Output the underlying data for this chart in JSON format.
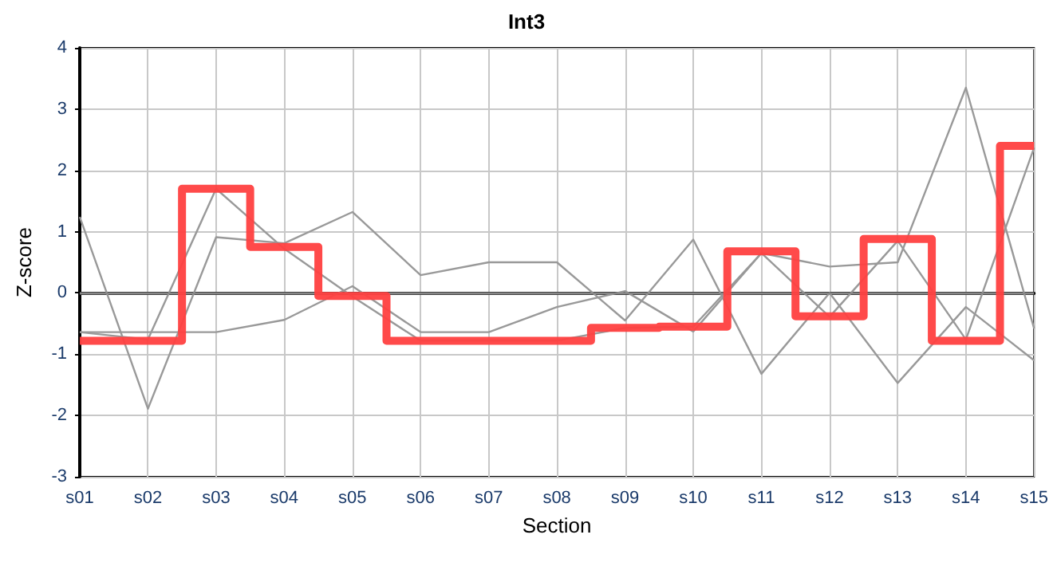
{
  "chart_data": {
    "type": "line",
    "title": "Int3",
    "xlabel": "Section",
    "ylabel": "Z-score",
    "categories": [
      "s01",
      "s02",
      "s03",
      "s04",
      "s05",
      "s06",
      "s07",
      "s08",
      "s09",
      "s10",
      "s11",
      "s12",
      "s13",
      "s14",
      "s15"
    ],
    "series": [
      {
        "color": "#999999",
        "values": [
          1.24,
          -1.89,
          0.91,
          0.81,
          1.32,
          0.29,
          0.5,
          0.5,
          -0.45,
          0.87,
          -1.32,
          0,
          -1.47,
          -0.23,
          -1.1
        ]
      },
      {
        "color": "#999999",
        "values": [
          -0.64,
          -0.64,
          -0.64,
          -0.44,
          0.11,
          -0.64,
          -0.64,
          -0.23,
          0.03,
          -0.63,
          0.65,
          0.43,
          0.5,
          3.35,
          -0.58
        ]
      },
      {
        "color": "#999999",
        "values": [
          -0.64,
          -0.76,
          1.7,
          0.72,
          -0.06,
          -0.78,
          -0.78,
          -0.78,
          -0.57,
          -0.55,
          0.65,
          -0.39,
          0.85,
          -0.76,
          2.37
        ]
      },
      {
        "type": "step",
        "color": "#ff4040",
        "values": [
          -0.78,
          -0.78,
          1.7,
          0.75,
          -0.05,
          -0.78,
          -0.78,
          -0.78,
          -0.57,
          -0.55,
          0.68,
          -0.38,
          0.88,
          -0.78,
          2.4
        ]
      }
    ],
    "ylim": [
      -3,
      4
    ],
    "yticks": [
      -3,
      -2,
      -1,
      0,
      1,
      2,
      3,
      4
    ],
    "grid": true,
    "marker": "none",
    "ref_lines": [
      {
        "axis": "y",
        "value": 0,
        "color": "#888888"
      }
    ]
  }
}
